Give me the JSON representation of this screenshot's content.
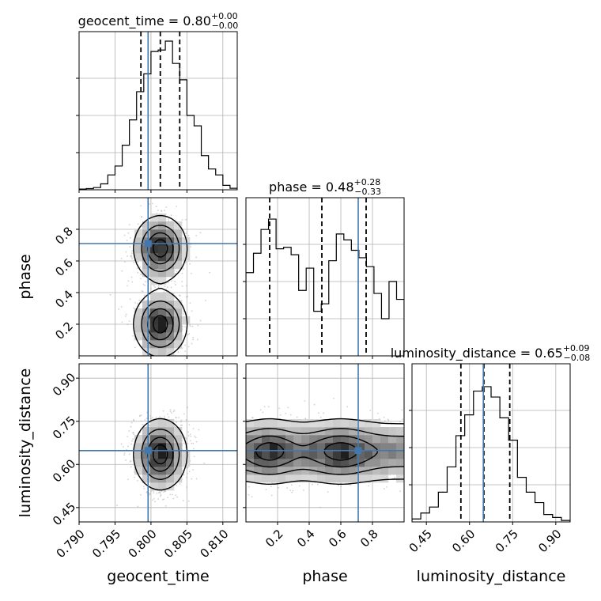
{
  "chart_data": {
    "type": "corner",
    "parameters": [
      {
        "name": "geocent_time",
        "xlabel": "geocent_time",
        "title": "geocent_time = 0.80",
        "title_sup": "+0.00",
        "title_sub": "−0.00",
        "range": [
          0.79,
          0.812
        ],
        "ticks": [
          0.79,
          0.795,
          0.8,
          0.805,
          0.81
        ],
        "tick_labels": [
          "0.790",
          "0.795",
          "0.800",
          "0.805",
          "0.810"
        ],
        "quantiles": [
          0.7986,
          0.8013,
          0.804
        ],
        "truth": 0.7996,
        "hist": [
          0.005,
          0.008,
          0.015,
          0.04,
          0.1,
          0.16,
          0.3,
          0.47,
          0.66,
          0.78,
          0.93,
          0.94,
          1.0,
          0.85,
          0.74,
          0.5,
          0.43,
          0.23,
          0.14,
          0.1,
          0.03,
          0.01
        ]
      },
      {
        "name": "phase",
        "xlabel": "phase",
        "ylabel": "phase",
        "title": "phase = 0.48",
        "title_sup": "+0.28",
        "title_sub": "−0.33",
        "range": [
          0.0,
          1.0
        ],
        "ticks": [
          0.2,
          0.4,
          0.6,
          0.8
        ],
        "tick_labels": [
          "0.2",
          "0.4",
          "0.6",
          "0.8"
        ],
        "quantiles": [
          0.15,
          0.48,
          0.76
        ],
        "truth": 0.71,
        "hist": [
          0.56,
          0.69,
          0.85,
          0.92,
          0.72,
          0.73,
          0.68,
          0.44,
          0.59,
          0.3,
          0.35,
          0.64,
          0.82,
          0.78,
          0.71,
          0.66,
          0.6,
          0.42,
          0.25,
          0.5,
          0.38
        ]
      },
      {
        "name": "luminosity_distance",
        "xlabel": "luminosity_distance",
        "ylabel": "luminosity_distance",
        "title": "luminosity_distance = 0.65",
        "title_sup": "+0.09",
        "title_sub": "−0.08",
        "range": [
          0.4,
          0.95
        ],
        "ticks": [
          0.45,
          0.6,
          0.75,
          0.9
        ],
        "tick_labels": [
          "0.45",
          "0.60",
          "0.75",
          "0.90"
        ],
        "quantiles": [
          0.57,
          0.65,
          0.74
        ],
        "truth": 0.648,
        "hist": [
          0.02,
          0.06,
          0.1,
          0.2,
          0.37,
          0.58,
          0.72,
          0.88,
          0.91,
          0.84,
          0.7,
          0.55,
          0.3,
          0.2,
          0.13,
          0.05,
          0.03,
          0.01
        ]
      }
    ],
    "truth_color": "#4477aa",
    "quantile_color": "#000000"
  }
}
